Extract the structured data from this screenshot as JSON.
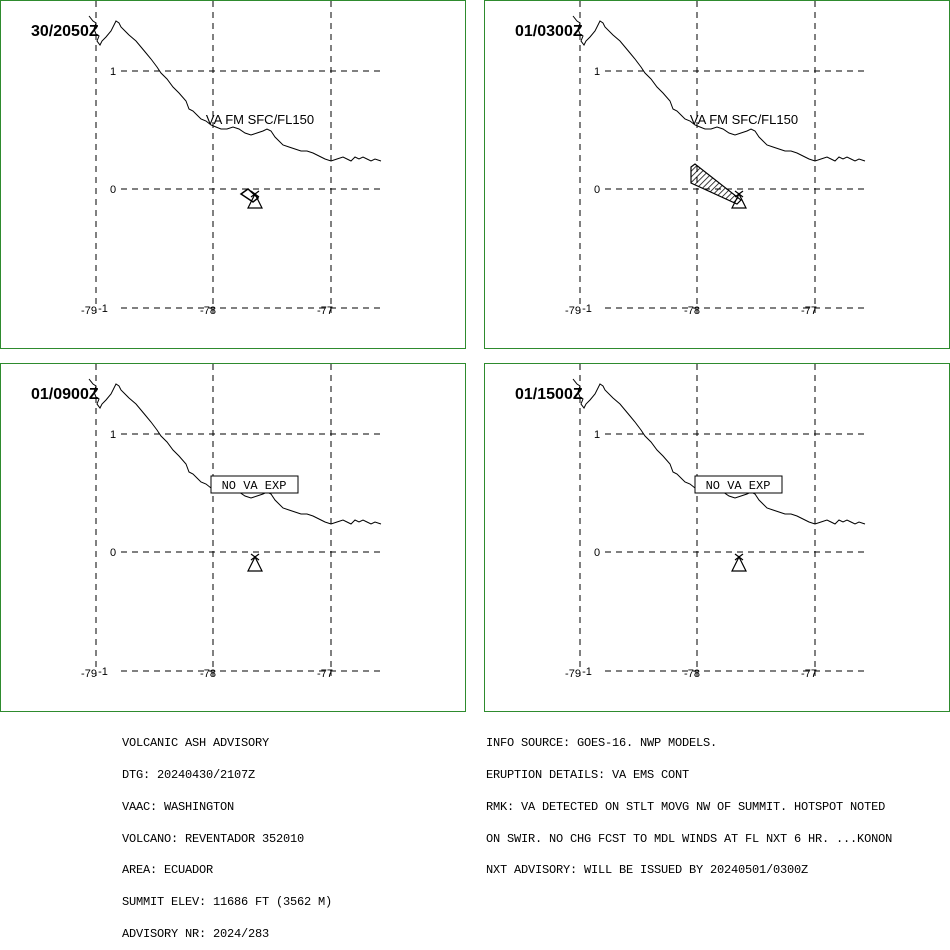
{
  "colors": {
    "frame": "#2e8b2e",
    "ink": "#000000",
    "background": "#ffffff"
  },
  "panels": [
    {
      "time": "30/2050Z",
      "label": "VA FM SFC/FL150",
      "label_boxed": false,
      "ash_polygon": "small",
      "volcano": "triangle-icon"
    },
    {
      "time": "01/0300Z",
      "label": "VA FM SFC/FL150",
      "label_boxed": false,
      "ash_polygon": "wedge-nw",
      "volcano": "triangle-icon"
    },
    {
      "time": "01/0900Z",
      "label": "NO VA EXP",
      "label_boxed": true,
      "ash_polygon": "none",
      "volcano": "triangle-icon"
    },
    {
      "time": "01/1500Z",
      "label": "NO VA EXP",
      "label_boxed": true,
      "ash_polygon": "none",
      "volcano": "triangle-icon"
    }
  ],
  "axes": {
    "lon_labels": [
      "-79",
      "-78",
      "-77"
    ],
    "lat_labels": [
      "1",
      "0",
      "-1"
    ]
  },
  "advisory_left": [
    "VOLCANIC ASH ADVISORY",
    "DTG: 20240430/2107Z",
    "VAAC: WASHINGTON",
    "VOLCANO: REVENTADOR 352010",
    "AREA: ECUADOR",
    "SUMMIT ELEV: 11686 FT (3562 M)",
    "ADVISORY NR: 2024/283"
  ],
  "advisory_right": [
    "INFO SOURCE: GOES-16. NWP MODELS.",
    "ERUPTION DETAILS: VA EMS CONT",
    "RMK: VA DETECTED ON STLT MOVG NW OF SUMMIT. HOTSPOT NOTED",
    "ON SWIR. NO CHG FCST TO MDL WINDS AT FL NXT 6 HR. ...KONON",
    "NXT ADVISORY: WILL BE ISSUED BY 20240501/0300Z"
  ]
}
